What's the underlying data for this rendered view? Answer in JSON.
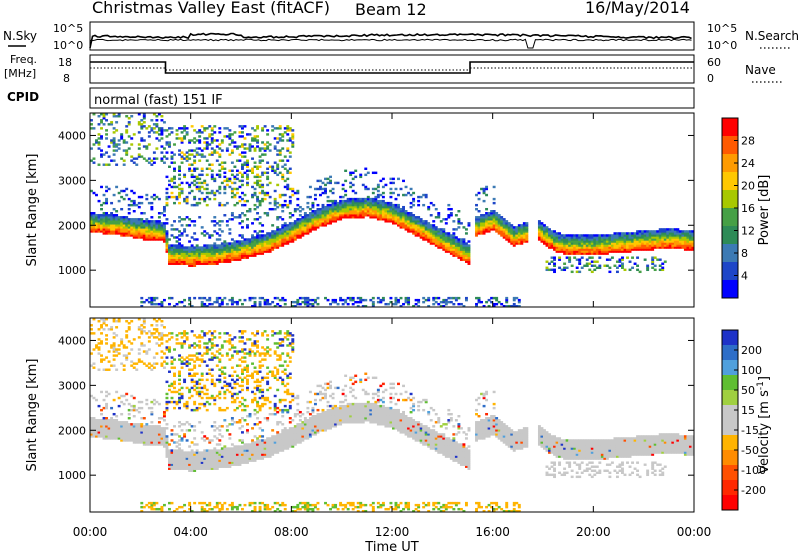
{
  "header": {
    "title": "Christmas Valley East (fitACF)",
    "beam": "Beam 12",
    "date": "16/May/2014"
  },
  "top_panels": {
    "nsky_label": "N.Sky",
    "nsky_ticks": [
      "10^5",
      "10^0"
    ],
    "nsearch_label": "N.Search",
    "nsearch_ticks": [
      "10^5",
      "10^0"
    ],
    "freq_label_1": "Freq.",
    "freq_label_2": "[MHz]",
    "freq_ticks": [
      "18",
      "8"
    ],
    "nave_label": "Nave",
    "nave_ticks": [
      "60",
      "0"
    ],
    "cpid_label": "CPID",
    "cpid_value": "normal (fast) 151 IF"
  },
  "power_colorbar": {
    "title": "Power [dB]",
    "ticks": [
      "28",
      "24",
      "20",
      "16",
      "12",
      "8",
      "4"
    ],
    "colors": [
      "#ff0000",
      "#ff5a00",
      "#ff9b00",
      "#ffc800",
      "#a8c800",
      "#46a046",
      "#2e8b57",
      "#3c7ab4",
      "#1e46c8",
      "#0000ff"
    ]
  },
  "velocity_colorbar": {
    "title": "Velocity [m s",
    "title_sup": "-1",
    "title_end": "]",
    "ticks": [
      "200",
      "100",
      "50",
      "15",
      "-15",
      "-50",
      "-100",
      "-200"
    ],
    "colors": [
      "#1e32c8",
      "#2e6ec8",
      "#50a0dc",
      "#5fbe32",
      "#a0d040",
      "#c8c8c8",
      "#c8c8c8",
      "#ffb400",
      "#ff8c00",
      "#ff5000",
      "#ff2800",
      "#ff0000"
    ]
  },
  "axes": {
    "ylabel": "Slant Range [km]",
    "y_ticks": [
      "4000",
      "3000",
      "2000",
      "1000"
    ],
    "x_ticks": [
      "00:00",
      "04:00",
      "08:00",
      "12:00",
      "16:00",
      "20:00",
      "00:00"
    ],
    "xlabel": "Time UT"
  },
  "chart_data": [
    {
      "type": "heatmap",
      "quantity": "Power",
      "units": "dB",
      "xlabel": "Time UT",
      "ylabel": "Slant Range [km]",
      "xlim_hours": [
        0,
        24
      ],
      "ylim_km": [
        180,
        4500
      ],
      "main_band_center_km": [
        [
          0,
          2000
        ],
        [
          1,
          1950
        ],
        [
          2,
          1850
        ],
        [
          2.9,
          1800
        ],
        [
          3.1,
          1300
        ],
        [
          4,
          1250
        ],
        [
          5,
          1300
        ],
        [
          6,
          1400
        ],
        [
          7,
          1550
        ],
        [
          8,
          1800
        ],
        [
          9,
          2100
        ],
        [
          10,
          2300
        ],
        [
          11,
          2350
        ],
        [
          12,
          2200
        ],
        [
          13,
          1900
        ],
        [
          14,
          1600
        ],
        [
          15,
          1300
        ],
        [
          15.2,
          1900
        ],
        [
          16,
          2050
        ],
        [
          16.8,
          1700
        ],
        [
          17.7,
          1850
        ],
        [
          18.5,
          1550
        ],
        [
          19,
          1500
        ],
        [
          20,
          1500
        ],
        [
          21,
          1550
        ],
        [
          22,
          1600
        ],
        [
          23,
          1650
        ],
        [
          24,
          1600
        ]
      ],
      "colorbar_range_db": [
        0,
        30
      ]
    },
    {
      "type": "heatmap",
      "quantity": "Velocity",
      "units": "m s-1",
      "xlabel": "Time UT",
      "ylabel": "Slant Range [km]",
      "xlim_hours": [
        0,
        24
      ],
      "ylim_km": [
        180,
        4500
      ],
      "colorbar_range": [
        -250,
        250
      ]
    }
  ]
}
